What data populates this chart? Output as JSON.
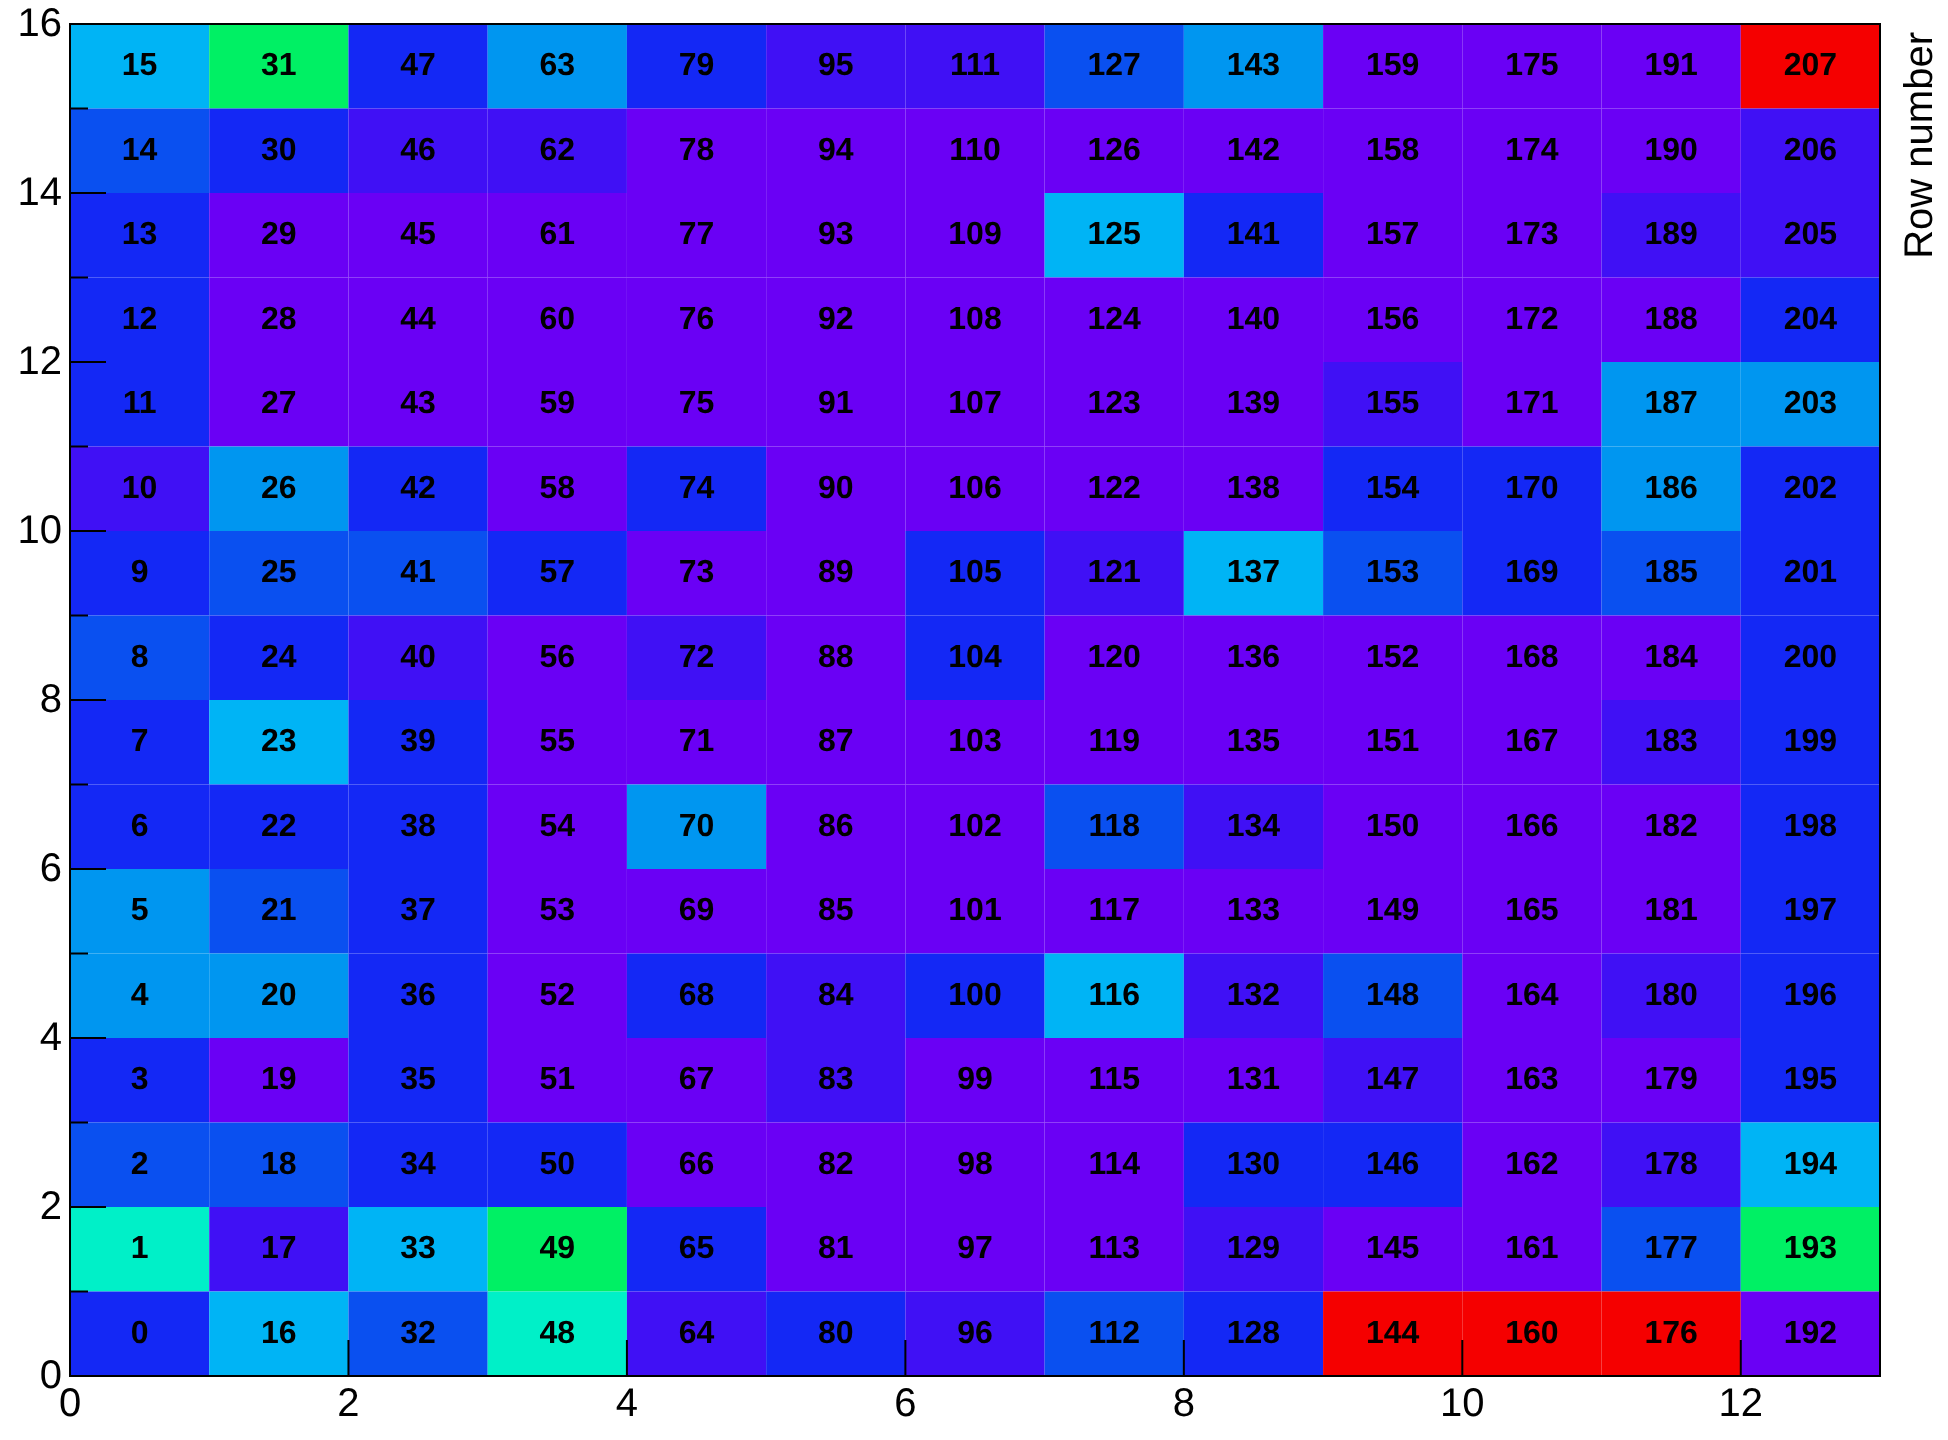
{
  "chart_data": {
    "type": "heatmap",
    "data_labels": true,
    "ylabel": "Row number",
    "xlim": [
      0,
      13
    ],
    "xticks": [
      0,
      2,
      4,
      6,
      8,
      10,
      12
    ],
    "ylim": [
      0,
      16
    ],
    "yticks": [
      0,
      {
        "value": 1,
        "label": null
      },
      2,
      {
        "value": 3,
        "label": null
      },
      4,
      {
        "value": 5,
        "label": null
      },
      6,
      {
        "value": 7,
        "label": null
      },
      8,
      {
        "value": 9,
        "label": null
      },
      10,
      {
        "value": 11,
        "label": null
      },
      12,
      {
        "value": 13,
        "label": null
      },
      14,
      {
        "value": 15,
        "label": null
      },
      16
    ],
    "cells": [
      [
        15,
        31,
        47,
        63,
        79,
        95,
        111,
        127,
        143,
        159,
        175,
        191,
        207
      ],
      [
        14,
        30,
        46,
        62,
        78,
        94,
        110,
        126,
        142,
        158,
        174,
        190,
        206
      ],
      [
        13,
        29,
        45,
        61,
        77,
        93,
        109,
        125,
        141,
        157,
        173,
        189,
        205
      ],
      [
        12,
        28,
        44,
        60,
        76,
        92,
        108,
        124,
        140,
        156,
        172,
        188,
        204
      ],
      [
        11,
        27,
        43,
        59,
        75,
        91,
        107,
        123,
        139,
        155,
        171,
        187,
        203
      ],
      [
        10,
        26,
        42,
        58,
        74,
        90,
        106,
        122,
        138,
        154,
        170,
        186,
        202
      ],
      [
        9,
        25,
        41,
        57,
        73,
        89,
        105,
        121,
        137,
        153,
        169,
        185,
        201
      ],
      [
        8,
        24,
        40,
        56,
        72,
        88,
        104,
        120,
        136,
        152,
        168,
        184,
        200
      ],
      [
        7,
        23,
        39,
        55,
        71,
        87,
        103,
        119,
        135,
        151,
        167,
        183,
        199
      ],
      [
        6,
        22,
        38,
        54,
        70,
        86,
        102,
        118,
        134,
        150,
        166,
        182,
        198
      ],
      [
        5,
        21,
        37,
        53,
        69,
        85,
        101,
        117,
        133,
        149,
        165,
        181,
        197
      ],
      [
        4,
        20,
        36,
        52,
        68,
        84,
        100,
        116,
        132,
        148,
        164,
        180,
        196
      ],
      [
        3,
        19,
        35,
        51,
        67,
        83,
        99,
        115,
        131,
        147,
        163,
        179,
        195
      ],
      [
        2,
        18,
        34,
        50,
        66,
        82,
        98,
        114,
        130,
        146,
        162,
        178,
        194
      ],
      [
        1,
        17,
        33,
        49,
        65,
        81,
        97,
        113,
        129,
        145,
        161,
        177,
        193
      ],
      [
        0,
        16,
        32,
        48,
        64,
        80,
        96,
        112,
        128,
        144,
        160,
        176,
        192
      ]
    ],
    "colors": [
      [
        "#00b4f5",
        "#00f064",
        "#1428f5",
        "#0096f0",
        "#1428f5",
        "#4010f5",
        "#4010f5",
        "#0a50f0",
        "#0096f0",
        "#6a00f5",
        "#6a00f5",
        "#6a00f5",
        "#f50000"
      ],
      [
        "#0a50f0",
        "#1428f5",
        "#4010f5",
        "#4010f5",
        "#6a00f5",
        "#6a00f5",
        "#6a00f5",
        "#6a00f5",
        "#6a00f5",
        "#6a00f5",
        "#6a00f5",
        "#6a00f5",
        "#4010f5"
      ],
      [
        "#1428f5",
        "#6a00f5",
        "#6a00f5",
        "#6a00f5",
        "#6a00f5",
        "#6a00f5",
        "#6a00f5",
        "#00b4f5",
        "#1428f5",
        "#6a00f5",
        "#6a00f5",
        "#4010f5",
        "#4010f5"
      ],
      [
        "#1428f5",
        "#6a00f5",
        "#6a00f5",
        "#6a00f5",
        "#6a00f5",
        "#6a00f5",
        "#6a00f5",
        "#6a00f5",
        "#6a00f5",
        "#6a00f5",
        "#6a00f5",
        "#6a00f5",
        "#1428f5"
      ],
      [
        "#1428f5",
        "#6a00f5",
        "#6a00f5",
        "#6a00f5",
        "#6a00f5",
        "#6a00f5",
        "#6a00f5",
        "#6a00f5",
        "#6a00f5",
        "#4010f5",
        "#6a00f5",
        "#0096f0",
        "#0096f0"
      ],
      [
        "#4010f5",
        "#0096f0",
        "#1428f5",
        "#6a00f5",
        "#1428f5",
        "#6a00f5",
        "#6a00f5",
        "#6a00f5",
        "#6a00f5",
        "#1428f5",
        "#1428f5",
        "#0096f0",
        "#1428f5"
      ],
      [
        "#1428f5",
        "#0a50f0",
        "#0a50f0",
        "#1428f5",
        "#6a00f5",
        "#6a00f5",
        "#1428f5",
        "#4010f5",
        "#00b4f5",
        "#0a50f0",
        "#1428f5",
        "#0a50f0",
        "#1428f5"
      ],
      [
        "#0a50f0",
        "#1428f5",
        "#4010f5",
        "#6a00f5",
        "#4010f5",
        "#6a00f5",
        "#1428f5",
        "#6a00f5",
        "#6a00f5",
        "#6a00f5",
        "#6a00f5",
        "#6a00f5",
        "#1428f5"
      ],
      [
        "#1428f5",
        "#00b4f5",
        "#1428f5",
        "#6a00f5",
        "#6a00f5",
        "#6a00f5",
        "#6a00f5",
        "#6a00f5",
        "#6a00f5",
        "#6a00f5",
        "#6a00f5",
        "#4010f5",
        "#1428f5"
      ],
      [
        "#1428f5",
        "#1428f5",
        "#1428f5",
        "#6a00f5",
        "#0096f0",
        "#6a00f5",
        "#6a00f5",
        "#0a50f0",
        "#4010f5",
        "#6a00f5",
        "#6a00f5",
        "#6a00f5",
        "#1428f5"
      ],
      [
        "#0096f0",
        "#0a50f0",
        "#1428f5",
        "#6a00f5",
        "#6a00f5",
        "#6a00f5",
        "#6a00f5",
        "#6a00f5",
        "#6a00f5",
        "#6a00f5",
        "#6a00f5",
        "#6a00f5",
        "#1428f5"
      ],
      [
        "#0096f0",
        "#0096f0",
        "#1428f5",
        "#6a00f5",
        "#1428f5",
        "#4010f5",
        "#1428f5",
        "#00b4f5",
        "#4010f5",
        "#0a50f0",
        "#6a00f5",
        "#4010f5",
        "#1428f5"
      ],
      [
        "#1428f5",
        "#6a00f5",
        "#1428f5",
        "#6a00f5",
        "#6a00f5",
        "#4010f5",
        "#6a00f5",
        "#6a00f5",
        "#6a00f5",
        "#4010f5",
        "#6a00f5",
        "#6a00f5",
        "#1428f5"
      ],
      [
        "#0a50f0",
        "#0a50f0",
        "#1428f5",
        "#1428f5",
        "#6a00f5",
        "#6a00f5",
        "#6a00f5",
        "#6a00f5",
        "#1428f5",
        "#1428f5",
        "#6a00f5",
        "#4010f5",
        "#00b4f5"
      ],
      [
        "#00f0c8",
        "#4010f5",
        "#00b4f5",
        "#00f064",
        "#1428f5",
        "#6a00f5",
        "#6a00f5",
        "#6a00f5",
        "#4010f5",
        "#6a00f5",
        "#6a00f5",
        "#0a50f0",
        "#00f064"
      ],
      [
        "#1428f5",
        "#00b4f5",
        "#0a50f0",
        "#00f0c8",
        "#4010f5",
        "#1428f5",
        "#4010f5",
        "#0a50f0",
        "#1428f5",
        "#f50000",
        "#f50000",
        "#f50000",
        "#6a00f5"
      ]
    ]
  }
}
